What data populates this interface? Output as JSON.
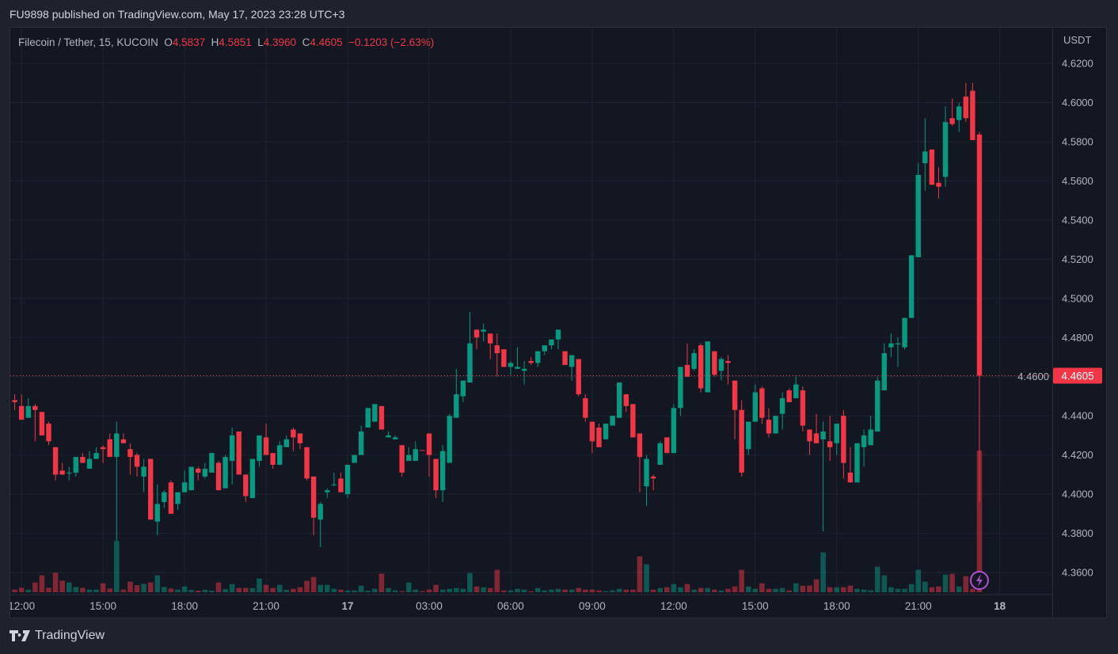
{
  "published": "FU9898 published on TradingView.com, May 17, 2023 23:28 UTC+3",
  "legend": {
    "symbol": "Filecoin / Tether, 15, KUCOIN",
    "o_label": "O",
    "o": "4.5837",
    "h_label": "H",
    "h": "4.5851",
    "l_label": "L",
    "l": "4.3960",
    "c_label": "C",
    "c": "4.4605",
    "change": "−0.1203 (−2.63%)"
  },
  "footer": {
    "brand": "TradingView"
  },
  "colors": {
    "up": "#089981",
    "down": "#f23645",
    "background": "#131722",
    "grid": "#1f2430",
    "alert_icon": "#b24fd6"
  },
  "icons": {
    "alert": "lightning-icon",
    "logo": "tradingview-logo-icon"
  },
  "chart_data": {
    "type": "candlestick",
    "interval": "15",
    "exchange": "KUCOIN",
    "y_unit": "USDT",
    "ylim": [
      4.3487,
      4.6382
    ],
    "grid": true,
    "y_ticks": [
      "4.6200",
      "4.6000",
      "4.5800",
      "4.5600",
      "4.5400",
      "4.5200",
      "4.5000",
      "4.4800",
      "4.4600",
      "4.4400",
      "4.4200",
      "4.4000",
      "4.3800",
      "4.3600"
    ],
    "last_price": "4.4605",
    "x_ticks": [
      {
        "label": "12:00",
        "t": "05-16 12:00"
      },
      {
        "label": "15:00",
        "t": "05-16 15:00"
      },
      {
        "label": "18:00",
        "t": "05-16 18:00"
      },
      {
        "label": "21:00",
        "t": "05-16 21:00"
      },
      {
        "label": "17",
        "t": "05-17 00:00"
      },
      {
        "label": "03:00",
        "t": "05-17 03:00"
      },
      {
        "label": "06:00",
        "t": "05-17 06:00"
      },
      {
        "label": "09:00",
        "t": "05-17 09:00"
      },
      {
        "label": "12:00",
        "t": "05-17 12:00"
      },
      {
        "label": "15:00",
        "t": "05-17 15:00"
      },
      {
        "label": "18:00",
        "t": "05-17 18:00"
      },
      {
        "label": "21:00",
        "t": "05-17 21:00"
      },
      {
        "label": "18",
        "t": "05-18 00:00"
      }
    ],
    "candle_fields": [
      "t",
      "open",
      "high",
      "low",
      "close",
      "volume_relative"
    ],
    "candles": [
      [
        "05-16 11:45",
        4.448,
        4.451,
        4.443,
        4.447,
        10
      ],
      [
        "05-16 12:00",
        4.445,
        4.451,
        4.438,
        4.438,
        17
      ],
      [
        "05-16 12:15",
        4.439,
        4.449,
        4.439,
        4.445,
        10
      ],
      [
        "05-16 12:30",
        4.445,
        4.446,
        4.427,
        4.443,
        37
      ],
      [
        "05-16 12:45",
        4.442,
        4.442,
        4.43,
        4.43,
        64
      ],
      [
        "05-16 13:00",
        4.436,
        4.437,
        4.425,
        4.427,
        17
      ],
      [
        "05-16 13:15",
        4.424,
        4.424,
        4.407,
        4.41,
        74
      ],
      [
        "05-16 13:30",
        4.412,
        4.416,
        4.41,
        4.41,
        44
      ],
      [
        "05-16 13:45",
        4.411,
        4.414,
        4.407,
        4.411,
        37
      ],
      [
        "05-16 14:00",
        4.411,
        4.419,
        4.409,
        4.419,
        20
      ],
      [
        "05-16 14:15",
        4.419,
        4.421,
        4.416,
        4.416,
        17
      ],
      [
        "05-16 14:30",
        4.413,
        4.422,
        4.413,
        4.418,
        10
      ],
      [
        "05-16 14:45",
        4.418,
        4.424,
        4.418,
        4.421,
        10
      ],
      [
        "05-16 15:00",
        4.424,
        4.425,
        4.416,
        4.423,
        34
      ],
      [
        "05-16 15:15",
        4.428,
        4.431,
        4.419,
        4.419,
        14
      ],
      [
        "05-16 15:30",
        4.419,
        4.437,
        4.376,
        4.431,
        194
      ],
      [
        "05-16 15:45",
        4.428,
        4.431,
        4.426,
        4.426,
        10
      ],
      [
        "05-16 16:00",
        4.423,
        4.426,
        4.41,
        4.419,
        40
      ],
      [
        "05-16 16:15",
        4.42,
        4.421,
        4.409,
        4.414,
        27
      ],
      [
        "05-16 16:30",
        4.409,
        4.418,
        4.401,
        4.414,
        32
      ],
      [
        "05-16 16:45",
        4.418,
        4.418,
        4.387,
        4.387,
        37
      ],
      [
        "05-16 17:00",
        4.386,
        4.405,
        4.379,
        4.395,
        64
      ],
      [
        "05-16 17:15",
        4.396,
        4.402,
        4.393,
        4.401,
        20
      ],
      [
        "05-16 17:30",
        4.406,
        4.407,
        4.39,
        4.39,
        14
      ],
      [
        "05-16 17:45",
        4.395,
        4.401,
        4.392,
        4.401,
        10
      ],
      [
        "05-16 18:00",
        4.401,
        4.412,
        4.401,
        4.406,
        22
      ],
      [
        "05-16 18:15",
        4.402,
        4.414,
        4.402,
        4.414,
        9
      ],
      [
        "05-16 18:30",
        4.413,
        4.414,
        4.407,
        4.411,
        6
      ],
      [
        "05-16 18:45",
        4.409,
        4.416,
        4.408,
        4.413,
        9
      ],
      [
        "05-16 19:00",
        4.411,
        4.421,
        4.411,
        4.421,
        6
      ],
      [
        "05-16 19:15",
        4.416,
        4.417,
        4.402,
        4.402,
        37
      ],
      [
        "05-16 19:30",
        4.403,
        4.42,
        4.403,
        4.419,
        12
      ],
      [
        "05-16 19:45",
        4.417,
        4.434,
        4.405,
        4.43,
        31
      ],
      [
        "05-16 20:00",
        4.432,
        4.432,
        4.41,
        4.41,
        16
      ],
      [
        "05-16 20:15",
        4.41,
        4.41,
        4.396,
        4.399,
        16
      ],
      [
        "05-16 20:30",
        4.398,
        4.418,
        4.398,
        4.418,
        16
      ],
      [
        "05-16 20:45",
        4.417,
        4.43,
        4.414,
        4.43,
        52
      ],
      [
        "05-16 21:00",
        4.429,
        4.436,
        4.42,
        4.42,
        28
      ],
      [
        "05-16 21:15",
        4.421,
        4.421,
        4.413,
        4.415,
        16
      ],
      [
        "05-16 21:30",
        4.415,
        4.427,
        4.415,
        4.425,
        28
      ],
      [
        "05-16 21:45",
        4.424,
        4.43,
        4.424,
        4.428,
        9
      ],
      [
        "05-16 22:00",
        4.433,
        4.434,
        4.422,
        4.429,
        13
      ],
      [
        "05-16 22:15",
        4.431,
        4.431,
        4.423,
        4.426,
        19
      ],
      [
        "05-16 22:30",
        4.424,
        4.424,
        4.407,
        4.408,
        43
      ],
      [
        "05-16 22:45",
        4.409,
        4.409,
        4.379,
        4.388,
        58
      ],
      [
        "05-16 23:00",
        4.387,
        4.396,
        4.373,
        4.395,
        28
      ],
      [
        "05-16 23:15",
        4.401,
        4.403,
        4.398,
        4.402,
        28
      ],
      [
        "05-16 23:30",
        4.405,
        4.411,
        4.404,
        4.405,
        13
      ],
      [
        "05-16 23:45",
        4.408,
        4.411,
        4.401,
        4.401,
        10
      ],
      [
        "05-17 00:00",
        4.4,
        4.415,
        4.398,
        4.415,
        7
      ],
      [
        "05-17 00:15",
        4.416,
        4.42,
        4.416,
        4.42,
        7
      ],
      [
        "05-17 00:30",
        4.42,
        4.435,
        4.42,
        4.432,
        25
      ],
      [
        "05-17 00:45",
        4.434,
        4.444,
        4.434,
        4.444,
        6
      ],
      [
        "05-17 01:00",
        4.437,
        4.446,
        4.437,
        4.446,
        13
      ],
      [
        "05-17 01:15",
        4.445,
        4.445,
        4.433,
        4.433,
        70
      ],
      [
        "05-17 01:30",
        4.429,
        4.432,
        4.429,
        4.43,
        16
      ],
      [
        "05-17 01:45",
        4.428,
        4.43,
        4.428,
        4.429,
        7
      ],
      [
        "05-17 02:00",
        4.425,
        4.425,
        4.409,
        4.411,
        4
      ],
      [
        "05-17 02:15",
        4.417,
        4.424,
        4.417,
        4.42,
        37
      ],
      [
        "05-17 02:30",
        4.417,
        4.427,
        4.417,
        4.423,
        10
      ],
      [
        "05-17 02:45",
        4.4225,
        4.4225,
        4.4224,
        4.4224,
        4
      ],
      [
        "05-17 03:00",
        4.431,
        4.431,
        4.409,
        4.42,
        10
      ],
      [
        "05-17 03:15",
        4.418,
        4.418,
        4.398,
        4.402,
        28
      ],
      [
        "05-17 03:30",
        4.402,
        4.425,
        4.396,
        4.422,
        10
      ],
      [
        "05-17 03:45",
        4.416,
        4.441,
        4.416,
        4.44,
        13
      ],
      [
        "05-17 04:00",
        4.439,
        4.464,
        4.439,
        4.451,
        16
      ],
      [
        "05-17 04:15",
        4.45,
        4.458,
        4.447,
        4.458,
        13
      ],
      [
        "05-17 04:30",
        4.457,
        4.493,
        4.457,
        4.477,
        73
      ],
      [
        "05-17 04:45",
        4.484,
        4.484,
        4.474,
        4.48,
        22
      ],
      [
        "05-17 05:00",
        4.483,
        4.487,
        4.478,
        4.484,
        19
      ],
      [
        "05-17 05:15",
        4.482,
        4.482,
        4.469,
        4.477,
        16
      ],
      [
        "05-17 05:30",
        4.476,
        4.482,
        4.46,
        4.472,
        85
      ],
      [
        "05-17 05:45",
        4.474,
        4.474,
        4.465,
        4.465,
        7
      ],
      [
        "05-17 06:00",
        4.465,
        4.468,
        4.461,
        4.467,
        7
      ],
      [
        "05-17 06:15",
        4.464,
        4.475,
        4.464,
        4.465,
        13
      ],
      [
        "05-17 06:30",
        4.463,
        4.468,
        4.456,
        4.464,
        10
      ],
      [
        "05-17 06:45",
        4.468,
        4.47,
        4.466,
        4.467,
        4
      ],
      [
        "05-17 07:00",
        4.467,
        4.473,
        4.465,
        4.473,
        16
      ],
      [
        "05-17 07:15",
        4.473,
        4.476,
        4.471,
        4.476,
        7
      ],
      [
        "05-17 07:30",
        4.476,
        4.479,
        4.474,
        4.479,
        10
      ],
      [
        "05-17 07:45",
        4.479,
        4.484,
        4.474,
        4.484,
        13
      ],
      [
        "05-17 08:00",
        4.473,
        4.473,
        4.466,
        4.466,
        10
      ],
      [
        "05-17 08:15",
        4.465,
        4.471,
        4.458,
        4.471,
        10
      ],
      [
        "05-17 08:30",
        4.469,
        4.469,
        4.45,
        4.451,
        16
      ],
      [
        "05-17 08:45",
        4.449,
        4.451,
        4.437,
        4.439,
        10
      ],
      [
        "05-17 09:00",
        4.437,
        4.437,
        4.421,
        4.427,
        10
      ],
      [
        "05-17 09:15",
        4.434,
        4.436,
        4.424,
        4.424,
        7
      ],
      [
        "05-17 09:30",
        4.428,
        4.436,
        4.428,
        4.436,
        4
      ],
      [
        "05-17 09:45",
        4.435,
        4.44,
        4.435,
        4.44,
        7
      ],
      [
        "05-17 10:00",
        4.439,
        4.457,
        4.439,
        4.457,
        13
      ],
      [
        "05-17 10:15",
        4.451,
        4.451,
        4.442,
        4.445,
        10
      ],
      [
        "05-17 10:30",
        4.446,
        4.446,
        4.429,
        4.429,
        10
      ],
      [
        "05-17 10:45",
        4.431,
        4.431,
        4.401,
        4.419,
        136
      ],
      [
        "05-17 11:00",
        4.404,
        4.42,
        4.394,
        4.418,
        106
      ],
      [
        "05-17 11:15",
        4.409,
        4.41,
        4.402,
        4.408,
        10
      ],
      [
        "05-17 11:30",
        4.415,
        4.427,
        4.415,
        4.426,
        16
      ],
      [
        "05-17 11:45",
        4.429,
        4.429,
        4.421,
        4.421,
        19
      ],
      [
        "05-17 12:00",
        4.421,
        4.446,
        4.421,
        4.444,
        31
      ],
      [
        "05-17 12:15",
        4.444,
        4.465,
        4.44,
        4.465,
        19
      ],
      [
        "05-17 12:30",
        4.466,
        4.477,
        4.46,
        4.46,
        31
      ],
      [
        "05-17 12:45",
        4.464,
        4.474,
        4.463,
        4.472,
        10
      ],
      [
        "05-17 13:00",
        4.476,
        4.477,
        4.452,
        4.454,
        16
      ],
      [
        "05-17 13:15",
        4.452,
        4.478,
        4.452,
        4.478,
        16
      ],
      [
        "05-17 13:30",
        4.473,
        4.473,
        4.46,
        4.461,
        10
      ],
      [
        "05-17 13:45",
        4.463,
        4.47,
        4.458,
        4.469,
        7
      ],
      [
        "05-17 14:00",
        4.468,
        4.471,
        4.456,
        4.467,
        13
      ],
      [
        "05-17 14:15",
        4.458,
        4.458,
        4.428,
        4.443,
        22
      ],
      [
        "05-17 14:30",
        4.443,
        4.448,
        4.409,
        4.411,
        85
      ],
      [
        "05-17 14:45",
        4.423,
        4.437,
        4.42,
        4.437,
        22
      ],
      [
        "05-17 15:00",
        4.437,
        4.456,
        4.437,
        4.452,
        13
      ],
      [
        "05-17 15:15",
        4.454,
        4.455,
        4.436,
        4.439,
        34
      ],
      [
        "05-17 15:30",
        4.438,
        4.444,
        4.429,
        4.431,
        13
      ],
      [
        "05-17 15:45",
        4.431,
        4.44,
        4.431,
        4.44,
        13
      ],
      [
        "05-17 16:00",
        4.441,
        4.452,
        4.433,
        4.449,
        16
      ],
      [
        "05-17 16:15",
        4.453,
        4.454,
        4.447,
        4.447,
        7
      ],
      [
        "05-17 16:30",
        4.449,
        4.46,
        4.449,
        4.456,
        34
      ],
      [
        "05-17 16:45",
        4.453,
        4.455,
        4.432,
        4.435,
        25
      ],
      [
        "05-17 17:00",
        4.433,
        4.433,
        4.42,
        4.427,
        25
      ],
      [
        "05-17 17:15",
        4.431,
        4.441,
        4.426,
        4.426,
        49
      ],
      [
        "05-17 17:30",
        4.428,
        4.437,
        4.381,
        4.432,
        151
      ],
      [
        "05-17 17:45",
        4.427,
        4.44,
        4.417,
        4.424,
        19
      ],
      [
        "05-17 18:00",
        4.426,
        4.436,
        4.42,
        4.436,
        19
      ],
      [
        "05-17 18:15",
        4.44,
        4.443,
        4.408,
        4.416,
        19
      ],
      [
        "05-17 18:30",
        4.411,
        4.424,
        4.406,
        4.406,
        25
      ],
      [
        "05-17 18:45",
        4.406,
        4.426,
        4.406,
        4.426,
        13
      ],
      [
        "05-17 19:00",
        4.424,
        4.433,
        4.414,
        4.43,
        10
      ],
      [
        "05-17 19:15",
        4.425,
        4.44,
        4.425,
        4.433,
        7
      ],
      [
        "05-17 19:30",
        4.432,
        4.46,
        4.432,
        4.458,
        97
      ],
      [
        "05-17 19:45",
        4.453,
        4.477,
        4.453,
        4.472,
        64
      ],
      [
        "05-17 20:00",
        4.475,
        4.482,
        4.47,
        4.477,
        19
      ],
      [
        "05-17 20:15",
        4.4765,
        4.48,
        4.465,
        4.477,
        13
      ],
      [
        "05-17 20:30",
        4.475,
        4.49,
        4.474,
        4.49,
        13
      ],
      [
        "05-17 20:45",
        4.49,
        4.522,
        4.49,
        4.522,
        31
      ],
      [
        "05-17 21:00",
        4.521,
        4.569,
        4.521,
        4.563,
        85
      ],
      [
        "05-17 21:15",
        4.569,
        4.592,
        4.555,
        4.575,
        40
      ],
      [
        "05-17 21:30",
        4.576,
        4.576,
        4.558,
        4.558,
        19
      ],
      [
        "05-17 21:45",
        4.559,
        4.567,
        4.551,
        4.557,
        22
      ],
      [
        "05-17 22:00",
        4.562,
        4.598,
        4.557,
        4.59,
        67
      ],
      [
        "05-17 22:15",
        4.592,
        4.602,
        4.588,
        4.589,
        70
      ],
      [
        "05-17 22:30",
        4.591,
        4.6,
        4.585,
        4.598,
        22
      ],
      [
        "05-17 22:45",
        4.603,
        4.61,
        4.59,
        4.592,
        61
      ],
      [
        "05-17 23:00",
        4.606,
        4.61,
        4.5808,
        4.5808,
        13
      ],
      [
        "05-17 23:15",
        4.5837,
        4.5851,
        4.396,
        4.4605,
        537
      ]
    ]
  }
}
